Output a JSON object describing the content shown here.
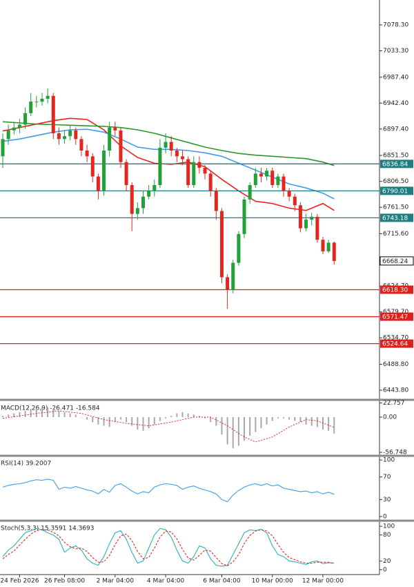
{
  "chart_data": [
    {
      "type": "candlestick",
      "categories": [
        null,
        null,
        null,
        "24 Feb 2026",
        null,
        null,
        null,
        null,
        null,
        null,
        null,
        "26 Feb 08:00",
        null,
        null,
        null,
        null,
        null,
        null,
        null,
        null,
        "2 Mar 04:00",
        null,
        null,
        null,
        null,
        null,
        null,
        null,
        null,
        "4 Mar 04:00",
        null,
        null,
        null,
        null,
        null,
        null,
        null,
        null,
        null,
        "6 Mar 04:00",
        null,
        null,
        null,
        null,
        null,
        null,
        null,
        null,
        "10 Mar 00:00",
        null,
        null,
        null,
        null,
        null,
        null,
        null,
        null,
        "12 Mar 00:00",
        null,
        null
      ],
      "open": [
        6850,
        6880,
        6895,
        6900,
        6905,
        6925,
        6945,
        6945,
        6950,
        6955,
        6890,
        6880,
        6885,
        6895,
        6880,
        6860,
        6850,
        6815,
        6790,
        6860,
        6900,
        6895,
        6840,
        6800,
        6750,
        6760,
        6780,
        6790,
        6800,
        6865,
        6875,
        6860,
        6850,
        6845,
        6800,
        6840,
        6830,
        6820,
        6790,
        6755,
        6640,
        6618,
        6665,
        6715,
        6775,
        6800,
        6820,
        6815,
        6825,
        6800,
        6815,
        6790,
        6780,
        6765,
        6725,
        6740,
        6745,
        6705,
        6685,
        6700
      ],
      "high": [
        6890,
        6905,
        6910,
        6915,
        6935,
        6960,
        6955,
        6960,
        6968,
        6960,
        6900,
        6895,
        6905,
        6900,
        6885,
        6870,
        6855,
        6820,
        6870,
        6910,
        6910,
        6900,
        6845,
        6805,
        6770,
        6790,
        6800,
        6810,
        6880,
        6890,
        6885,
        6865,
        6860,
        6850,
        6850,
        6850,
        6835,
        6825,
        6795,
        6760,
        6645,
        6670,
        6720,
        6780,
        6805,
        6830,
        6830,
        6830,
        6830,
        6820,
        6820,
        6795,
        6785,
        6770,
        6750,
        6752,
        6750,
        6710,
        6705,
        6702
      ],
      "low": [
        6830,
        6870,
        6888,
        6890,
        6898,
        6920,
        6935,
        6938,
        6942,
        6880,
        6870,
        6872,
        6878,
        6870,
        6850,
        6840,
        6805,
        6775,
        6782,
        6850,
        6885,
        6830,
        6790,
        6720,
        6740,
        6750,
        6775,
        6780,
        6795,
        6855,
        6850,
        6840,
        6835,
        6795,
        6795,
        6820,
        6810,
        6780,
        6740,
        6630,
        6585,
        6612,
        6660,
        6708,
        6768,
        6795,
        6805,
        6808,
        6795,
        6795,
        6780,
        6772,
        6755,
        6718,
        6720,
        6730,
        6700,
        6680,
        6682,
        6662
      ],
      "close": [
        6880,
        6895,
        6900,
        6905,
        6925,
        6945,
        6945,
        6950,
        6955,
        6890,
        6880,
        6885,
        6895,
        6880,
        6860,
        6850,
        6815,
        6790,
        6860,
        6900,
        6895,
        6840,
        6800,
        6750,
        6760,
        6780,
        6790,
        6800,
        6865,
        6875,
        6860,
        6850,
        6845,
        6800,
        6840,
        6830,
        6820,
        6790,
        6755,
        6640,
        6618,
        6665,
        6715,
        6775,
        6800,
        6820,
        6815,
        6825,
        6800,
        6815,
        6790,
        6780,
        6765,
        6725,
        6740,
        6745,
        6705,
        6685,
        6700,
        6668.24
      ],
      "up_color": "#22a03a",
      "down_color": "#e3261e",
      "lines": [
        {
          "color": "#e8231f",
          "x": [
            0,
            3,
            6,
            9,
            12,
            15,
            18,
            21,
            24,
            27,
            30,
            33,
            36,
            39,
            42,
            45,
            48,
            51,
            54,
            57,
            59
          ],
          "values": [
            6894,
            6900,
            6906,
            6912,
            6916,
            6914,
            6896,
            6868,
            6848,
            6838,
            6836,
            6840,
            6832,
            6810,
            6790,
            6772,
            6768,
            6760,
            6756,
            6768,
            6756
          ]
        },
        {
          "color": "#3d9be9",
          "x": [
            0,
            3,
            6,
            9,
            12,
            15,
            18,
            21,
            24,
            27,
            30,
            33,
            36,
            39,
            42,
            45,
            48,
            51,
            54,
            57,
            59
          ],
          "values": [
            6876,
            6880,
            6886,
            6892,
            6896,
            6897,
            6892,
            6880,
            6866,
            6862,
            6862,
            6860,
            6856,
            6850,
            6838,
            6826,
            6814,
            6802,
            6795,
            6786,
            6776
          ]
        },
        {
          "color": "#2a962a",
          "x": [
            0,
            3,
            6,
            9,
            12,
            15,
            18,
            21,
            24,
            27,
            30,
            33,
            36,
            39,
            42,
            45,
            48,
            51,
            54,
            57,
            59
          ],
          "values": [
            6910,
            6908,
            6906,
            6905,
            6904,
            6903,
            6902,
            6900,
            6896,
            6890,
            6882,
            6874,
            6866,
            6860,
            6855,
            6852,
            6850,
            6848,
            6846,
            6840,
            6834
          ]
        }
      ],
      "levels": [
        {
          "value": 6836.84,
          "color": "#1f7f80"
        },
        {
          "value": 6790.01,
          "color": "#1f7f80"
        },
        {
          "value": 6743.18,
          "color": "#1f7f80"
        },
        {
          "value": 6618.3,
          "label": "6618.30",
          "color": "#e0201c"
        },
        {
          "value": 6571.47,
          "color": "#e0201c"
        },
        {
          "value": 6524.64,
          "color": "#e0201c"
        }
      ],
      "last_price": 6668.24,
      "ylim": [
        6428.2,
        7121.5
      ],
      "yticks": [
        {
          "value": 7078.3,
          "label": "7078.30"
        },
        {
          "value": 7033.3,
          "label": "7033.30"
        },
        {
          "value": 6987.4,
          "label": "6987.40"
        },
        {
          "value": 6942.4,
          "label": "6942.40"
        },
        {
          "value": 6897.4,
          "label": "6897.40"
        },
        {
          "value": 6851.5,
          "label": "6851.50"
        },
        {
          "value": 6806.5,
          "label": "6806.50"
        },
        {
          "value": 6761.5,
          "label": "6761.50"
        },
        {
          "value": 6715.6,
          "label": "6715.60"
        },
        {
          "value": 6624.7,
          "label": "6624.70"
        },
        {
          "value": 6579.7,
          "label": "6579.70"
        },
        {
          "value": 6534.7,
          "label": "6534.70"
        },
        {
          "value": 6488.8,
          "label": "6488.80"
        },
        {
          "value": 6443.8,
          "label": "6443.80"
        }
      ]
    },
    {
      "type": "macd",
      "title": "MACD(12,26,9) -26.471 -16.584",
      "values": [
        2,
        4,
        6,
        8,
        10,
        12,
        14,
        15,
        16,
        14,
        10,
        8,
        6,
        4,
        0,
        -4,
        -8,
        -12,
        -14,
        -16,
        -8,
        -4,
        -8,
        -14,
        -20,
        -22,
        -18,
        -12,
        -6,
        -2,
        2,
        6,
        8,
        6,
        4,
        2,
        -2,
        -8,
        -14,
        -28,
        -44,
        -50,
        -46,
        -38,
        -30,
        -24,
        -18,
        -12,
        -6,
        -2,
        -2,
        -4,
        -6,
        -8,
        -12,
        -14,
        -16,
        -20,
        -22,
        -26.471
      ],
      "bar_color": "#a8a8a8",
      "signal": {
        "color": "#e3261e",
        "x": [
          0,
          6,
          10,
          14,
          18,
          22,
          26,
          30,
          34,
          37,
          40,
          43,
          45,
          48,
          51,
          54,
          56,
          59
        ],
        "values": [
          -2,
          6,
          10,
          6,
          -4,
          -10,
          -14,
          -8,
          0,
          0,
          -14,
          -32,
          -40,
          -32,
          -16,
          -4,
          -6,
          -16.584
        ]
      },
      "ylim": [
        -60.1,
        24.5
      ],
      "yticks": [
        22.757,
        {
          "value": 0,
          "label": "0.00"
        },
        -56.748
      ]
    },
    {
      "type": "line",
      "title": "RSI(14) 39.2007",
      "series": [
        {
          "color": "#3d9be9",
          "values": [
            52,
            55,
            57,
            58,
            60,
            63,
            65,
            64,
            66,
            64,
            48,
            52,
            50,
            53,
            50,
            47,
            45,
            40,
            48,
            43,
            55,
            58,
            52,
            45,
            40,
            44,
            42,
            52,
            56,
            58,
            57,
            55,
            48,
            52,
            54,
            50,
            47,
            44,
            40,
            30,
            26,
            38,
            46,
            52,
            56,
            58,
            55,
            58,
            54,
            56,
            50,
            48,
            46,
            44,
            45,
            42,
            44,
            40,
            43,
            39.2007
          ]
        }
      ],
      "ylim": [
        -5,
        105
      ],
      "yticks": [
        100,
        70,
        30,
        0
      ]
    },
    {
      "type": "line",
      "title": "Stoch(5,3,3) 15.3591 14.3693",
      "series": [
        {
          "color": "#2ab0b8",
          "values": [
            30,
            45,
            55,
            70,
            85,
            90,
            95,
            92,
            85,
            80,
            70,
            40,
            50,
            55,
            45,
            25,
            15,
            10,
            30,
            60,
            85,
            90,
            70,
            40,
            15,
            20,
            50,
            80,
            95,
            92,
            75,
            45,
            20,
            15,
            30,
            55,
            50,
            25,
            10,
            8,
            10,
            35,
            60,
            85,
            92,
            90,
            93,
            85,
            55,
            35,
            30,
            20,
            18,
            15,
            12,
            18,
            20,
            14,
            16,
            15.3591
          ]
        },
        {
          "color": "#e3261e",
          "dash": true,
          "values": [
            25,
            35,
            43,
            57,
            70,
            82,
            90,
            92,
            91,
            86,
            78,
            63,
            53,
            48,
            50,
            42,
            28,
            17,
            18,
            33,
            58,
            78,
            82,
            67,
            42,
            25,
            28,
            50,
            75,
            89,
            87,
            71,
            47,
            27,
            22,
            33,
            45,
            43,
            28,
            14,
            9,
            18,
            35,
            60,
            79,
            89,
            92,
            89,
            78,
            58,
            40,
            28,
            23,
            18,
            15,
            15,
            17,
            17,
            17,
            14.3693
          ]
        }
      ],
      "ylim": [
        -11.3,
        109.7
      ],
      "yticks": [
        100,
        80,
        20,
        0
      ]
    }
  ]
}
